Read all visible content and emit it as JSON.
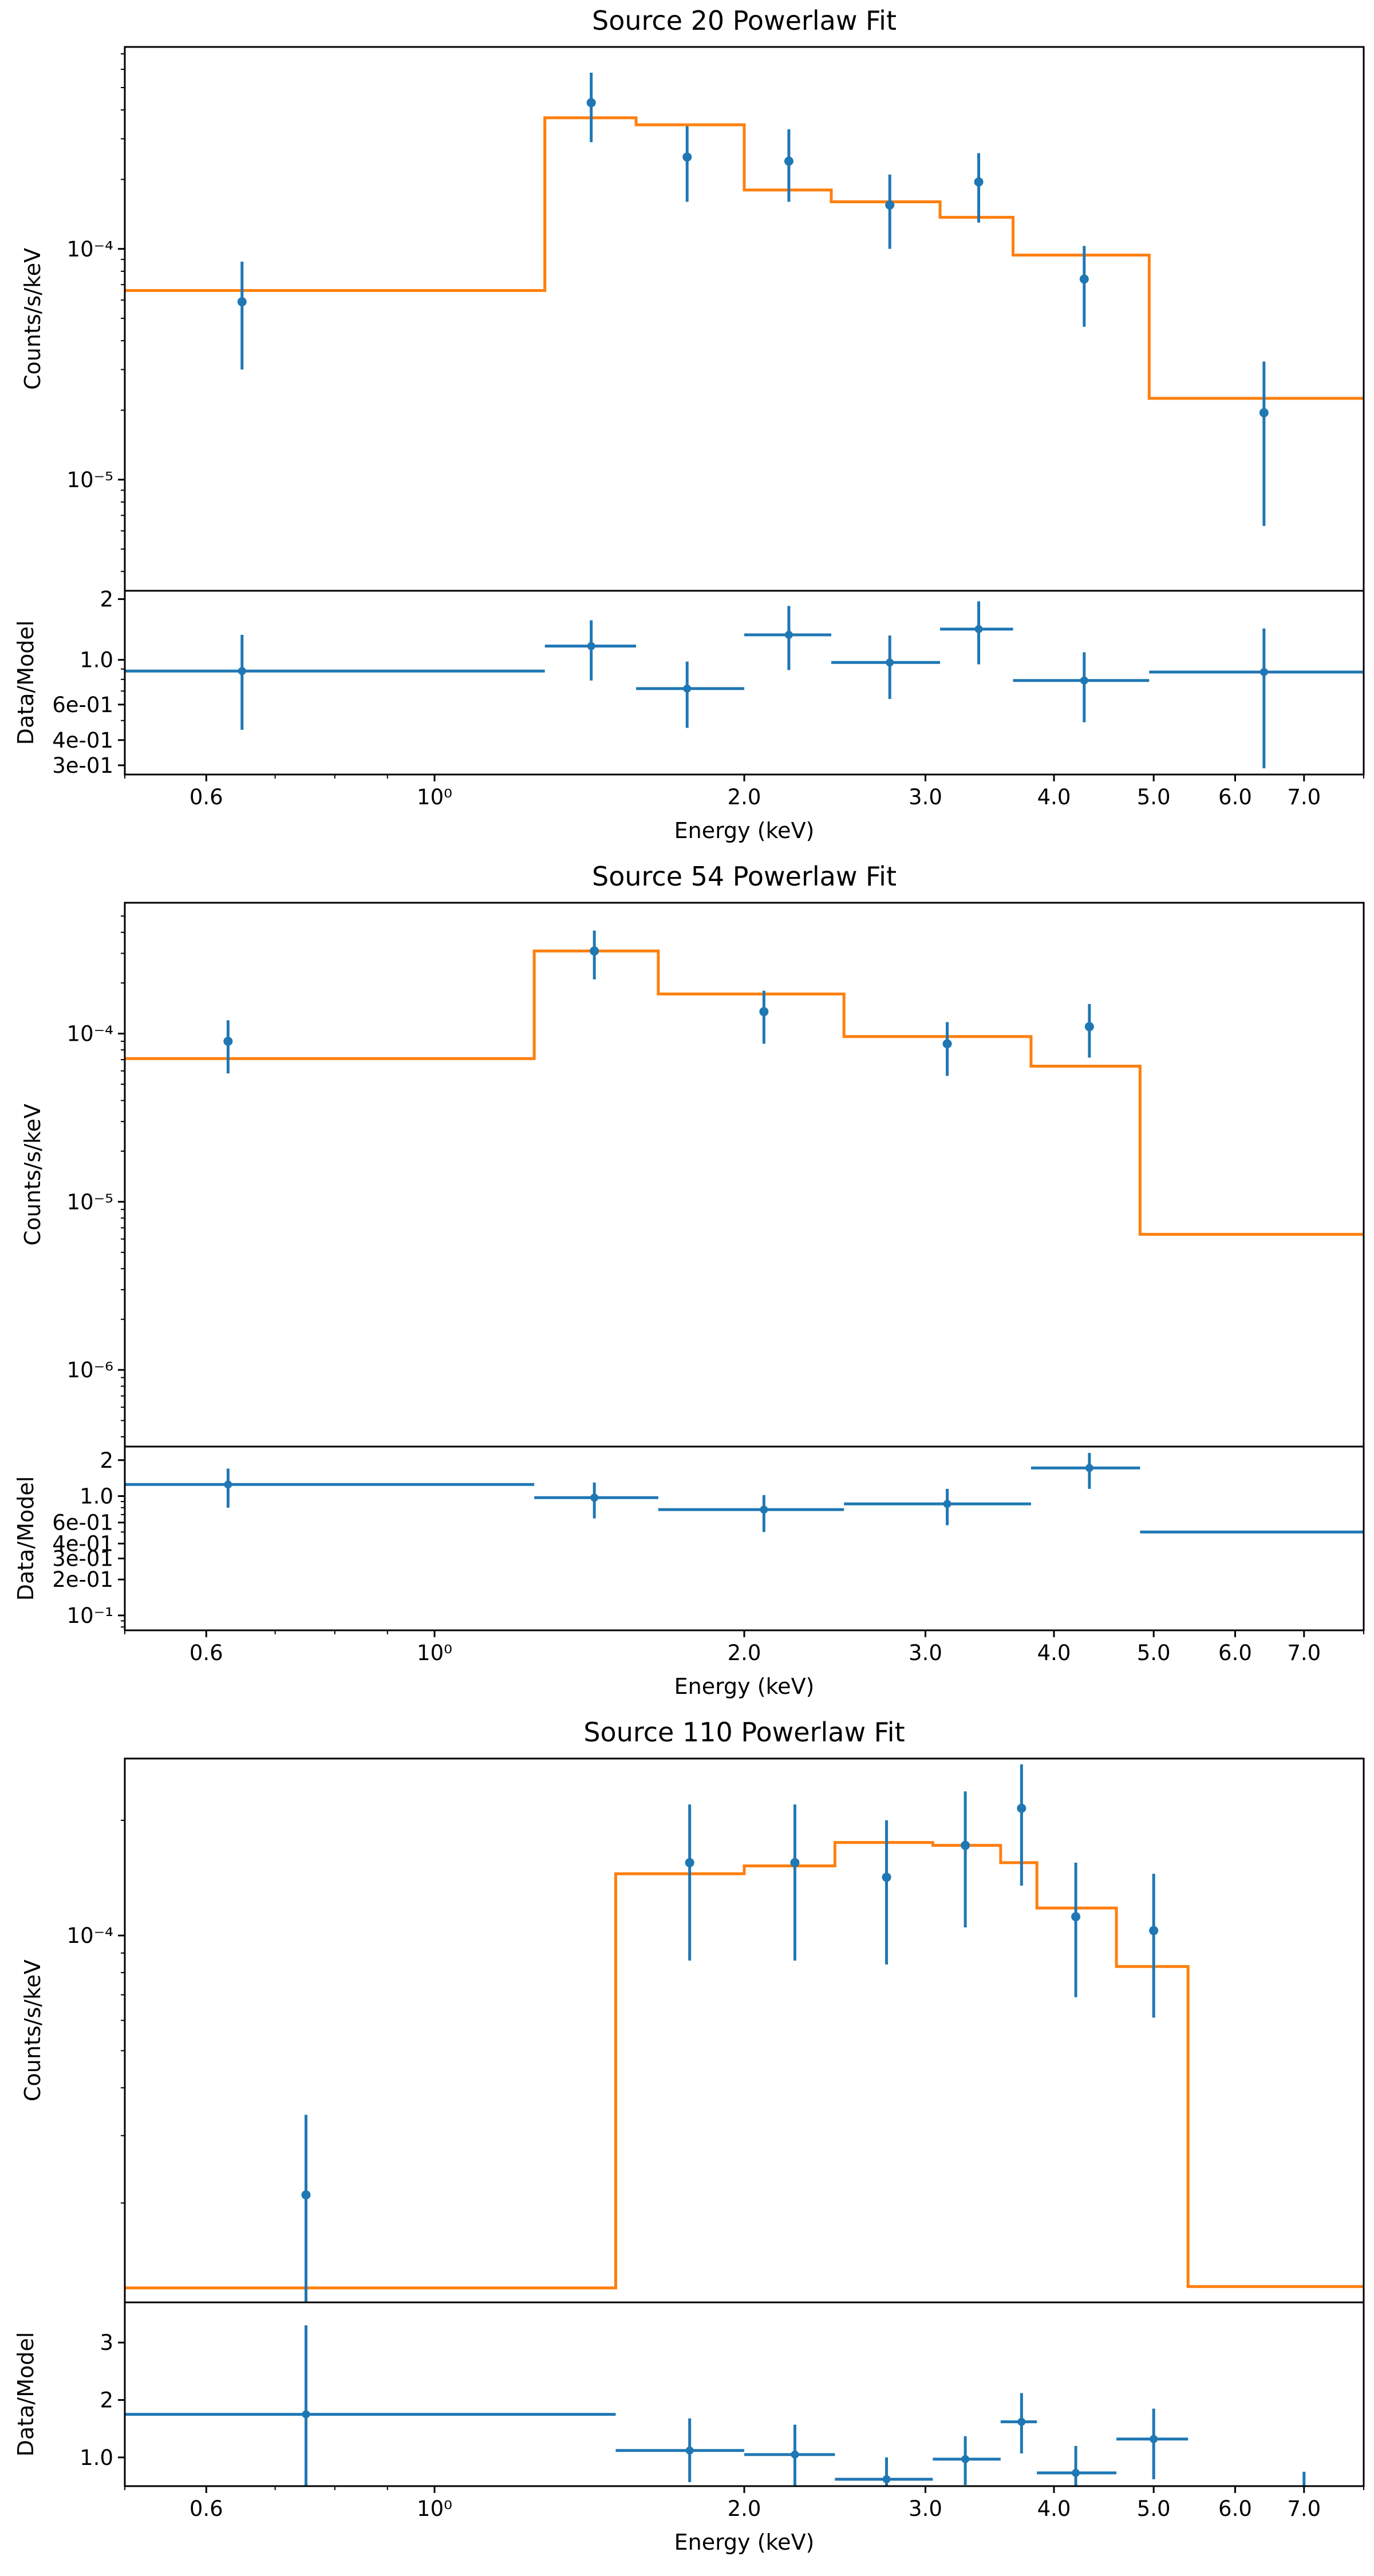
{
  "colors": {
    "data": "#1f77b4",
    "model": "#ff7f0e",
    "axis": "#000000"
  },
  "xlabel": "Energy (keV)",
  "chart_data": [
    {
      "type": "line",
      "title": "Source 20 Powerlaw Fit",
      "xlabel": "Energy (keV)",
      "xscale": "log",
      "xlim": [
        0.5,
        8.0
      ],
      "x_ticks": [
        {
          "value": 0.6,
          "label": "0.6"
        },
        {
          "value": 1.0,
          "label": "10⁰"
        },
        {
          "value": 2.0,
          "label": "2.0"
        },
        {
          "value": 3.0,
          "label": "3.0"
        },
        {
          "value": 4.0,
          "label": "4.0"
        },
        {
          "value": 5.0,
          "label": "5.0"
        },
        {
          "value": 6.0,
          "label": "6.0"
        },
        {
          "value": 7.0,
          "label": "7.0"
        }
      ],
      "spectrum": {
        "ylabel": "Counts/s/keV",
        "yscale": "log",
        "ylim": [
          3.3e-06,
          0.00075
        ],
        "y_ticks": [
          {
            "value": 0.0001,
            "label": "10⁻⁴"
          },
          {
            "value": 1e-05,
            "label": "10⁻⁵"
          }
        ],
        "data": [
          {
            "x": 0.65,
            "y": 5.9e-05,
            "ylo": 3e-05,
            "yhi": 8.8e-05
          },
          {
            "x": 1.42,
            "y": 0.00043,
            "ylo": 0.00029,
            "yhi": 0.00058
          },
          {
            "x": 1.76,
            "y": 0.00025,
            "ylo": 0.00016,
            "yhi": 0.00034
          },
          {
            "x": 2.21,
            "y": 0.00024,
            "ylo": 0.00016,
            "yhi": 0.00033
          },
          {
            "x": 2.77,
            "y": 0.000155,
            "ylo": 0.0001,
            "yhi": 0.00021
          },
          {
            "x": 3.38,
            "y": 0.000195,
            "ylo": 0.00013,
            "yhi": 0.00026
          },
          {
            "x": 4.28,
            "y": 7.4e-05,
            "ylo": 4.6e-05,
            "yhi": 0.000103
          },
          {
            "x": 6.4,
            "y": 1.95e-05,
            "ylo": 6.3e-06,
            "yhi": 3.25e-05
          }
        ],
        "model_steps": [
          {
            "x0": 0.5,
            "x1": 1.28,
            "y": 6.6e-05
          },
          {
            "x0": 1.28,
            "x1": 1.57,
            "y": 0.00037
          },
          {
            "x0": 1.57,
            "x1": 2.0,
            "y": 0.000345
          },
          {
            "x0": 2.0,
            "x1": 2.43,
            "y": 0.00018
          },
          {
            "x0": 2.43,
            "x1": 3.1,
            "y": 0.00016
          },
          {
            "x0": 3.1,
            "x1": 3.65,
            "y": 0.000137
          },
          {
            "x0": 3.65,
            "x1": 4.95,
            "y": 9.4e-05
          },
          {
            "x0": 4.95,
            "x1": 8.0,
            "y": 2.25e-05
          }
        ]
      },
      "ratio": {
        "ylabel": "Data/Model",
        "yscale": "log",
        "ylim": [
          0.27,
          2.2
        ],
        "y_ticks": [
          {
            "value": 2,
            "label": "2"
          },
          {
            "value": 1.0,
            "label": "1.0"
          },
          {
            "value": 0.6,
            "label": "6e-01"
          },
          {
            "value": 0.4,
            "label": "4e-01"
          },
          {
            "value": 0.3,
            "label": "3e-01"
          }
        ],
        "data": [
          {
            "x": 0.65,
            "x0": 0.5,
            "x1": 1.28,
            "y": 0.88,
            "ylo": 0.45,
            "yhi": 1.33
          },
          {
            "x": 1.42,
            "x0": 1.28,
            "x1": 1.57,
            "y": 1.17,
            "ylo": 0.79,
            "yhi": 1.57
          },
          {
            "x": 1.76,
            "x0": 1.57,
            "x1": 2.0,
            "y": 0.72,
            "ylo": 0.46,
            "yhi": 0.98
          },
          {
            "x": 2.21,
            "x0": 2.0,
            "x1": 2.43,
            "y": 1.33,
            "ylo": 0.89,
            "yhi": 1.85
          },
          {
            "x": 2.77,
            "x0": 2.43,
            "x1": 3.1,
            "y": 0.97,
            "ylo": 0.64,
            "yhi": 1.32
          },
          {
            "x": 3.38,
            "x0": 3.1,
            "x1": 3.65,
            "y": 1.42,
            "ylo": 0.95,
            "yhi": 1.95
          },
          {
            "x": 4.28,
            "x0": 3.65,
            "x1": 4.95,
            "y": 0.79,
            "ylo": 0.49,
            "yhi": 1.09
          },
          {
            "x": 6.4,
            "x0": 4.95,
            "x1": 8.0,
            "y": 0.87,
            "ylo": 0.29,
            "yhi": 1.43
          }
        ]
      }
    },
    {
      "type": "line",
      "title": "Source 54 Powerlaw Fit",
      "xlabel": "Energy (keV)",
      "xscale": "log",
      "xlim": [
        0.5,
        8.0
      ],
      "x_ticks": [
        {
          "value": 0.6,
          "label": "0.6"
        },
        {
          "value": 1.0,
          "label": "10⁰"
        },
        {
          "value": 2.0,
          "label": "2.0"
        },
        {
          "value": 3.0,
          "label": "3.0"
        },
        {
          "value": 4.0,
          "label": "4.0"
        },
        {
          "value": 5.0,
          "label": "5.0"
        },
        {
          "value": 6.0,
          "label": "6.0"
        },
        {
          "value": 7.0,
          "label": "7.0"
        }
      ],
      "spectrum": {
        "ylabel": "Counts/s/keV",
        "yscale": "log",
        "ylim": [
          3.5e-07,
          0.0006
        ],
        "y_ticks": [
          {
            "value": 0.0001,
            "label": "10⁻⁴"
          },
          {
            "value": 1e-05,
            "label": "10⁻⁵"
          },
          {
            "value": 1e-06,
            "label": "10⁻⁶"
          }
        ],
        "data": [
          {
            "x": 0.63,
            "y": 9e-05,
            "ylo": 5.8e-05,
            "yhi": 0.00012
          },
          {
            "x": 1.43,
            "y": 0.00031,
            "ylo": 0.00021,
            "yhi": 0.00041
          },
          {
            "x": 2.09,
            "y": 0.000135,
            "ylo": 8.7e-05,
            "yhi": 0.00018
          },
          {
            "x": 3.15,
            "y": 8.7e-05,
            "ylo": 5.6e-05,
            "yhi": 0.000117
          },
          {
            "x": 4.33,
            "y": 0.00011,
            "ylo": 7.2e-05,
            "yhi": 0.00015
          }
        ],
        "model_steps": [
          {
            "x0": 0.5,
            "x1": 1.25,
            "y": 7.1e-05
          },
          {
            "x0": 1.25,
            "x1": 1.65,
            "y": 0.00031
          },
          {
            "x0": 1.65,
            "x1": 2.5,
            "y": 0.000172
          },
          {
            "x0": 2.5,
            "x1": 3.8,
            "y": 9.6e-05
          },
          {
            "x0": 3.8,
            "x1": 4.85,
            "y": 6.4e-05
          },
          {
            "x0": 4.85,
            "x1": 8.0,
            "y": 6.4e-06
          }
        ]
      },
      "ratio": {
        "ylabel": "Data/Model",
        "yscale": "log",
        "ylim": [
          0.075,
          2.6
        ],
        "y_ticks": [
          {
            "value": 2,
            "label": "2"
          },
          {
            "value": 1.0,
            "label": "1.0"
          },
          {
            "value": 0.6,
            "label": "6e-01"
          },
          {
            "value": 0.4,
            "label": "4e-01"
          },
          {
            "value": 0.3,
            "label": "3e-01"
          },
          {
            "value": 0.2,
            "label": "2e-01"
          },
          {
            "value": 0.1,
            "label": "10⁻¹"
          }
        ],
        "data": [
          {
            "x": 0.63,
            "x0": 0.5,
            "x1": 1.25,
            "y": 1.25,
            "ylo": 0.8,
            "yhi": 1.7
          },
          {
            "x": 1.43,
            "x0": 1.25,
            "x1": 1.65,
            "y": 0.97,
            "ylo": 0.65,
            "yhi": 1.3
          },
          {
            "x": 2.09,
            "x0": 1.65,
            "x1": 2.5,
            "y": 0.77,
            "ylo": 0.5,
            "yhi": 1.02
          },
          {
            "x": 3.15,
            "x0": 2.5,
            "x1": 3.8,
            "y": 0.86,
            "ylo": 0.57,
            "yhi": 1.15
          },
          {
            "x": 4.33,
            "x0": 3.8,
            "x1": 4.85,
            "y": 1.72,
            "ylo": 1.15,
            "yhi": 2.3
          },
          {
            "x": 6.2,
            "x0": 4.85,
            "x1": 8.0,
            "y": 0.5,
            "ylo": 0.5,
            "yhi": 0.5
          }
        ]
      }
    },
    {
      "type": "line",
      "title": "Source 110 Powerlaw Fit",
      "xlabel": "Energy (keV)",
      "xscale": "log",
      "xlim": [
        0.5,
        8.0
      ],
      "x_ticks": [
        {
          "value": 0.6,
          "label": "0.6"
        },
        {
          "value": 1.0,
          "label": "10⁰"
        },
        {
          "value": 2.0,
          "label": "2.0"
        },
        {
          "value": 3.0,
          "label": "3.0"
        },
        {
          "value": 4.0,
          "label": "4.0"
        },
        {
          "value": 5.0,
          "label": "5.0"
        },
        {
          "value": 6.0,
          "label": "6.0"
        },
        {
          "value": 7.0,
          "label": "7.0"
        }
      ],
      "spectrum": {
        "ylabel": "Counts/s/keV",
        "yscale": "log",
        "ylim": [
          1.1e-05,
          0.00029
        ],
        "y_ticks": [
          {
            "value": 0.0001,
            "label": "10⁻⁴"
          }
        ],
        "data": [
          {
            "x": 0.75,
            "y": 2.1e-05,
            "ylo": 1.1e-05,
            "yhi": 3.4e-05
          },
          {
            "x": 1.77,
            "y": 0.000155,
            "ylo": 8.6e-05,
            "yhi": 0.00022
          },
          {
            "x": 2.24,
            "y": 0.000155,
            "ylo": 8.6e-05,
            "yhi": 0.00022
          },
          {
            "x": 2.75,
            "y": 0.000142,
            "ylo": 8.4e-05,
            "yhi": 0.0002
          },
          {
            "x": 3.28,
            "y": 0.000172,
            "ylo": 0.000105,
            "yhi": 0.000238
          },
          {
            "x": 3.72,
            "y": 0.000215,
            "ylo": 0.000135,
            "yhi": 0.00028
          },
          {
            "x": 4.2,
            "y": 0.000112,
            "ylo": 6.9e-05,
            "yhi": 0.000155
          },
          {
            "x": 5.0,
            "y": 0.000103,
            "ylo": 6.1e-05,
            "yhi": 0.000145
          }
        ],
        "model_steps": [
          {
            "x0": 0.5,
            "x1": 1.5,
            "y": 1.2e-05
          },
          {
            "x0": 1.5,
            "x1": 2.0,
            "y": 0.000145
          },
          {
            "x0": 2.0,
            "x1": 2.45,
            "y": 0.000152
          },
          {
            "x0": 2.45,
            "x1": 3.05,
            "y": 0.000175
          },
          {
            "x0": 3.05,
            "x1": 3.55,
            "y": 0.000172
          },
          {
            "x0": 3.55,
            "x1": 3.85,
            "y": 0.000155
          },
          {
            "x0": 3.85,
            "x1": 4.6,
            "y": 0.000118
          },
          {
            "x0": 4.6,
            "x1": 5.4,
            "y": 8.3e-05
          },
          {
            "x0": 5.4,
            "x1": 8.0,
            "y": 1.21e-05
          }
        ]
      },
      "ratio": {
        "ylabel": "Data/Model",
        "yscale": "linear",
        "ylim": [
          0.5,
          3.7
        ],
        "y_ticks": [
          {
            "value": 3,
            "label": "3"
          },
          {
            "value": 2,
            "label": "2"
          },
          {
            "value": 1.0,
            "label": "1.0"
          }
        ],
        "data": [
          {
            "x": 0.75,
            "x0": 0.5,
            "x1": 1.5,
            "y": 1.75,
            "ylo": 0.5,
            "yhi": 3.3
          },
          {
            "x": 1.77,
            "x0": 1.5,
            "x1": 2.0,
            "y": 1.12,
            "ylo": 0.57,
            "yhi": 1.68
          },
          {
            "x": 2.24,
            "x0": 2.0,
            "x1": 2.45,
            "y": 1.05,
            "ylo": 0.5,
            "yhi": 1.57
          },
          {
            "x": 2.75,
            "x0": 2.45,
            "x1": 3.05,
            "y": 0.62,
            "ylo": 0.5,
            "yhi": 1.0
          },
          {
            "x": 3.28,
            "x0": 3.05,
            "x1": 3.55,
            "y": 0.97,
            "ylo": 0.52,
            "yhi": 1.37
          },
          {
            "x": 3.72,
            "x0": 3.55,
            "x1": 3.85,
            "y": 1.62,
            "ylo": 1.07,
            "yhi": 2.12
          },
          {
            "x": 4.2,
            "x0": 3.85,
            "x1": 4.6,
            "y": 0.73,
            "ylo": 0.5,
            "yhi": 1.2
          },
          {
            "x": 5.0,
            "x0": 4.6,
            "x1": 5.4,
            "y": 1.32,
            "ylo": 0.62,
            "yhi": 1.85
          },
          {
            "x": 7.0,
            "x0": 7.0,
            "x1": 7.0,
            "y": 0.5,
            "ylo": 0.5,
            "yhi": 0.75
          }
        ]
      }
    }
  ]
}
